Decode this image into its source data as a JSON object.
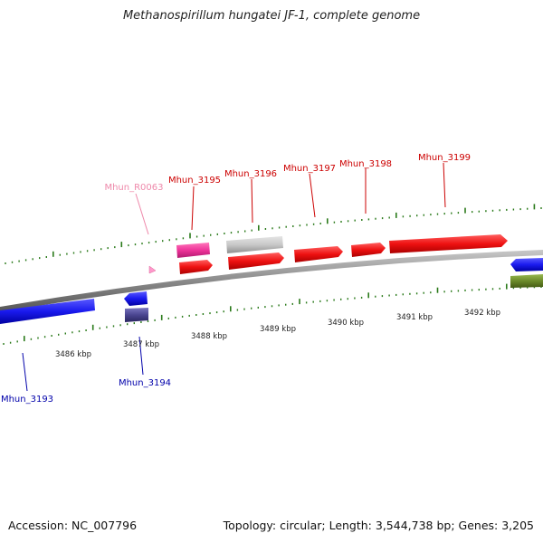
{
  "title": "Methanospirillum hungatei JF-1, complete genome",
  "footer": {
    "accession": "Accession: NC_007796",
    "summary": "Topology: circular; Length: 3,544,738 bp; Genes: 3,205"
  },
  "colors": {
    "forward_cds": "#ee1111",
    "reverse_cds": "#1a1aee",
    "rrna": "#ee3399",
    "trna": "#ff99cc",
    "pseudo": "#c8c8c8",
    "other_reverse": "#4a4590",
    "other_forward": "#6b8a2a",
    "tick": "#2a7a1a",
    "backbone": "#8a8a8a",
    "label_forward": "#cc0000",
    "label_reverse": "#0000aa",
    "label_rna": "#ee88aa"
  },
  "axis_labels": [
    "3486 kbp",
    "3487 kbp",
    "3488 kbp",
    "3489 kbp",
    "3490 kbp",
    "3491 kbp",
    "3492 kbp"
  ],
  "gene_labels": [
    {
      "text": "Mhun_R0063",
      "kind": "rna"
    },
    {
      "text": "Mhun_3195",
      "kind": "forward"
    },
    {
      "text": "Mhun_3196",
      "kind": "forward"
    },
    {
      "text": "Mhun_3197",
      "kind": "forward"
    },
    {
      "text": "Mhun_3198",
      "kind": "forward"
    },
    {
      "text": "Mhun_3199",
      "kind": "forward"
    },
    {
      "text": "Mhun_3193",
      "kind": "reverse"
    },
    {
      "text": "Mhun_3194",
      "kind": "reverse"
    }
  ]
}
